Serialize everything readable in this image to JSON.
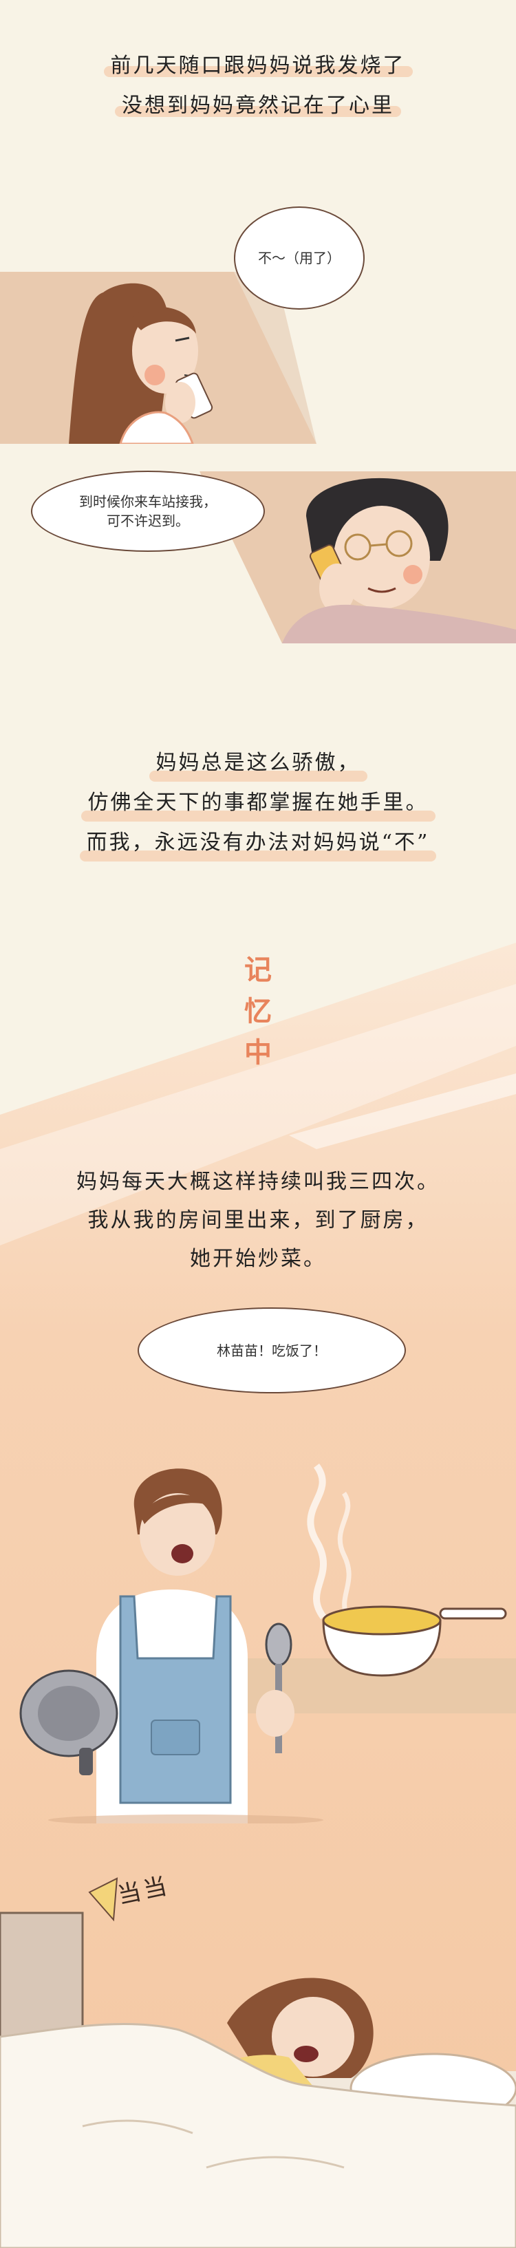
{
  "intro": {
    "line1": "前几天随口跟妈妈说我发烧了",
    "line2": "没想到妈妈竟然记在了心里"
  },
  "panel1": {
    "daughter_bubble": "不～（用了）"
  },
  "panel2": {
    "mom_bubble_line1": "到时候你来车站接我，",
    "mom_bubble_line2": "可不许迟到。"
  },
  "narration1": {
    "line1": "妈妈总是这么骄傲，",
    "line2": "仿佛全天下的事都掌握在她手里。",
    "line3": "而我，永远没有办法对妈妈说“不”"
  },
  "memory_title": {
    "char1": "记",
    "char2": "忆",
    "char3": "中"
  },
  "narration2": {
    "line1": "妈妈每天大概这样持续叫我三四次。",
    "line2": "我从我的房间里出来，到了厨房，",
    "line3": "她开始炒菜。"
  },
  "panel3": {
    "mom_bubble": "林苗苗！吃饭了！"
  },
  "panel4": {
    "sound_effect": "当当"
  },
  "colors": {
    "background": "#f8f3e6",
    "peach": "#f5c9a5",
    "accent_orange": "#e8845c",
    "apron_blue": "#8fb3cf"
  }
}
